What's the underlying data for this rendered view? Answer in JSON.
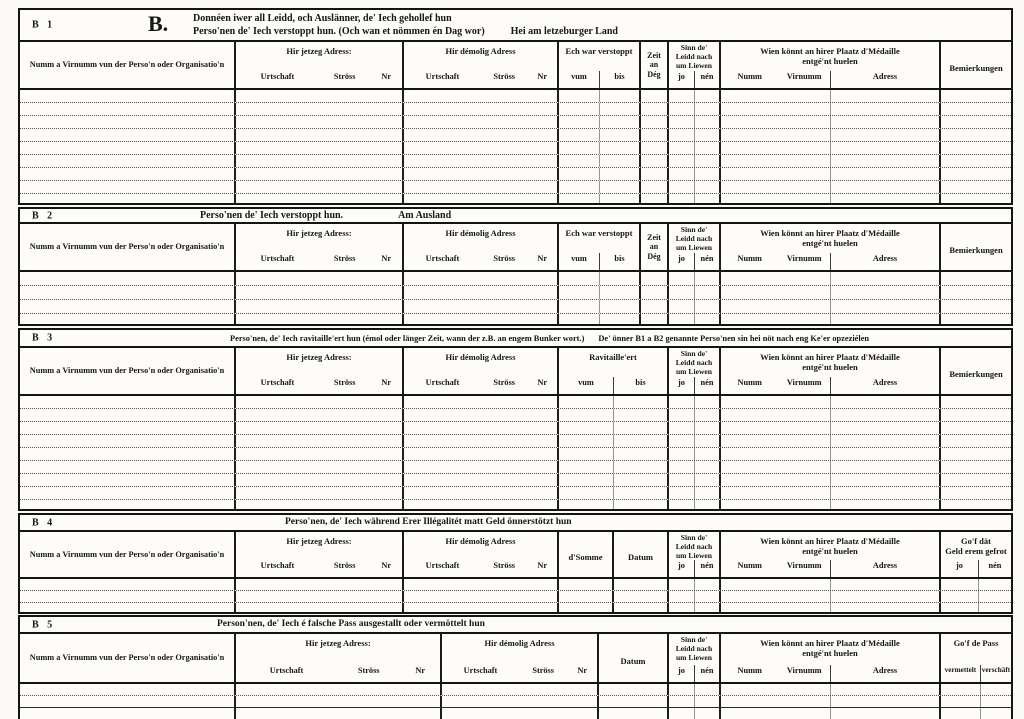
{
  "form": {
    "sections": [
      {
        "id": "B 1",
        "big_letter": "B.",
        "title_lines": [
          "Donnéen iwer all Leidd, och Auslänner, de' Iech gehollef hun",
          "Perso'nen de' Iech verstoppt hun. (Och wan et nömmen én Dag wor)"
        ],
        "title_note": "Hei am letzeburger Land",
        "columns": [
          {
            "label": "Numm a Virnumm vun der Perso'n oder Organisatio'n"
          },
          {
            "label": "Hir jetzeg Adress:",
            "subs": [
              {
                "label": "Urtschaft"
              },
              {
                "label": "Ströss"
              },
              {
                "label": "Nr"
              }
            ]
          },
          {
            "label": "Hir démolig Adress",
            "subs": [
              {
                "label": "Urtschaft"
              },
              {
                "label": "Ströss"
              },
              {
                "label": "Nr"
              }
            ]
          },
          {
            "label": "Ech war verstoppt",
            "subs": [
              {
                "label": "vum"
              },
              {
                "label": "bis"
              }
            ]
          },
          {
            "label_lines": [
              "Zeit",
              "an",
              "Dég"
            ]
          },
          {
            "label_lines": [
              "Sinn  de'",
              "Leidd  nach",
              "um Liewen"
            ],
            "subs": [
              {
                "label": "jo"
              },
              {
                "label": "nén"
              }
            ]
          },
          {
            "label_lines": [
              "Wien könnt an hirer Plaatz d'Médaille",
              "entgé'nt huelen"
            ],
            "subs": [
              {
                "label": "Numm"
              },
              {
                "label": "Virnumm"
              },
              {
                "label": "Adress"
              }
            ]
          },
          {
            "label": "Bemierkungen"
          }
        ]
      },
      {
        "id": "B 2",
        "title_lines": [
          "Perso'nen de' Iech verstoppt hun."
        ],
        "title_note": "Am Ausland",
        "columns": [
          {
            "label": "Numm a Virnumm vun der Perso'n oder Organisatio'n"
          },
          {
            "label": "Hir jetzeg Adress:",
            "subs": [
              {
                "label": "Urtschaft"
              },
              {
                "label": "Ströss"
              },
              {
                "label": "Nr"
              }
            ]
          },
          {
            "label": "Hir démolig Adress",
            "subs": [
              {
                "label": "Urtschaft"
              },
              {
                "label": "Ströss"
              },
              {
                "label": "Nr"
              }
            ]
          },
          {
            "label": "Ech war verstoppt",
            "subs": [
              {
                "label": "vum"
              },
              {
                "label": "bis"
              }
            ]
          },
          {
            "label_lines": [
              "Zeit",
              "an",
              "Dég"
            ]
          },
          {
            "label_lines": [
              "Sinn  de'",
              "Leidd  nach",
              "um Liewen"
            ],
            "subs": [
              {
                "label": "jo"
              },
              {
                "label": "nén"
              }
            ]
          },
          {
            "label_lines": [
              "Wien könnt an hirer Plaatz d'Médaille",
              "entgé'nt huelen"
            ],
            "subs": [
              {
                "label": "Numm"
              },
              {
                "label": "Virnumm"
              },
              {
                "label": "Adress"
              }
            ]
          },
          {
            "label": "Bemierkungen"
          }
        ]
      },
      {
        "id": "B 3",
        "title_lines": [
          "Perso'nen, de' Iech ravitaille'ert hun (émol oder länger Zeit, wann der z.B. an engem Bunker wort.)"
        ],
        "title_note": "De' önner B1 a B2 genannte Perso'nen sin hei nöt nach eng Ke'er opzeziélen",
        "columns": [
          {
            "label": "Numm a Virnumm vun der Perso'n oder Organisatio'n"
          },
          {
            "label": "Hir jetzeg Adress:",
            "subs": [
              {
                "label": "Urtschaft"
              },
              {
                "label": "Ströss"
              },
              {
                "label": "Nr"
              }
            ]
          },
          {
            "label": "Hir démolig Adress",
            "subs": [
              {
                "label": "Urtschaft"
              },
              {
                "label": "Ströss"
              },
              {
                "label": "Nr"
              }
            ]
          },
          {
            "label": "Ravitaille'ert",
            "subs": [
              {
                "label": "vum"
              },
              {
                "label": "bis"
              }
            ]
          },
          {
            "label_lines": [
              "Sinn  de'",
              "Leidd  nach",
              "um Liewen"
            ],
            "subs": [
              {
                "label": "jo"
              },
              {
                "label": "nén"
              }
            ]
          },
          {
            "label_lines": [
              "Wien könnt an hirer Plaatz d'Médaille",
              "entgé'nt huelen"
            ],
            "subs": [
              {
                "label": "Numm"
              },
              {
                "label": "Virnumm"
              },
              {
                "label": "Adress"
              }
            ]
          },
          {
            "label": "Bemierkungen"
          }
        ]
      },
      {
        "id": "B 4",
        "title_lines": [
          "Perso'nen, de' Iech während Erer Illégalitét matt Geld önnerstötzt hun"
        ],
        "columns": [
          {
            "label": "Numm a Virnumm vun der Perso'n oder Organisatio'n"
          },
          {
            "label": "Hir jetzeg Adress:",
            "subs": [
              {
                "label": "Urtschaft"
              },
              {
                "label": "Ströss"
              },
              {
                "label": "Nr"
              }
            ]
          },
          {
            "label": "Hir démolig Adress",
            "subs": [
              {
                "label": "Urtschaft"
              },
              {
                "label": "Ströss"
              },
              {
                "label": "Nr"
              }
            ]
          },
          {
            "label": "d'Somme"
          },
          {
            "label": "Datum"
          },
          {
            "label_lines": [
              "Sinn  de'",
              "Leidd  nach",
              "um Liewen"
            ],
            "subs": [
              {
                "label": "jo"
              },
              {
                "label": "nén"
              }
            ]
          },
          {
            "label_lines": [
              "Wien könnt an hirer Plaatz d'Médaille",
              "entgé'nt huelen"
            ],
            "subs": [
              {
                "label": "Numm"
              },
              {
                "label": "Virnumm"
              },
              {
                "label": "Adress"
              }
            ]
          },
          {
            "label_lines": [
              "Go'f  dät",
              "Geld  erem  gefrot"
            ],
            "subs": [
              {
                "label": "jo"
              },
              {
                "label": "nén"
              }
            ]
          }
        ]
      },
      {
        "id": "B 5",
        "title_lines": [
          "Person'nen, de' Iech é falsche Pass ausgestallt oder vermöttelt hun"
        ],
        "columns": [
          {
            "label": "Numm a Virnumm vun der Perso'n oder Organisatio'n"
          },
          {
            "label": "Hir jetzeg Adress:",
            "subs": [
              {
                "label": "Urtschaft"
              },
              {
                "label": "Ströss"
              },
              {
                "label": "Nr"
              }
            ]
          },
          {
            "label": "Hir démolig Adress",
            "subs": [
              {
                "label": "Urtschaft"
              },
              {
                "label": "Ströss"
              },
              {
                "label": "Nr"
              }
            ]
          },
          {
            "label": "Datum"
          },
          {
            "label_lines": [
              "Sinn  de'",
              "Leidd  nach",
              "um Liewen"
            ],
            "subs": [
              {
                "label": "jo"
              },
              {
                "label": "nén"
              }
            ]
          },
          {
            "label_lines": [
              "Wien könnt an hirer Plaatz d'Médaille",
              "entgé'nt huelen"
            ],
            "subs": [
              {
                "label": "Numm"
              },
              {
                "label": "Virnumm"
              },
              {
                "label": "Adress"
              }
            ]
          },
          {
            "label": "Go'f de Pass",
            "subs": [
              {
                "label": "vermettelt"
              },
              {
                "label": "verschäft"
              }
            ]
          }
        ]
      }
    ]
  }
}
